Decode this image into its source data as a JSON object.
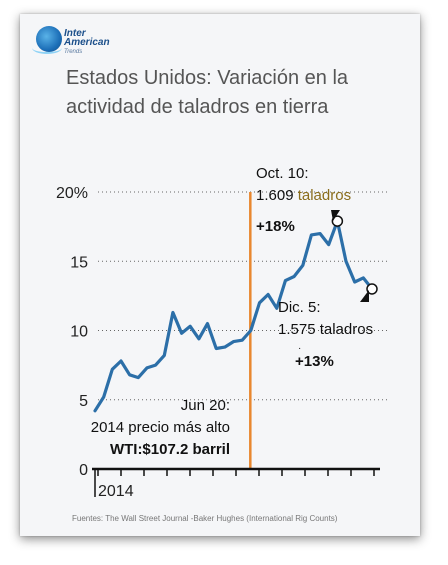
{
  "logo": {
    "line1": "Inter",
    "line2": "American",
    "line3": "Trends",
    "icon": "globe-icon"
  },
  "chart_data": {
    "type": "line",
    "title": "Estados Unidos: Variación en la actividad de taladros en tierra",
    "xlabel": "",
    "ylabel": "",
    "x_tick_label": "2014",
    "y_ticks": [
      0,
      5,
      10,
      15,
      20
    ],
    "y_tick_labels": [
      "0",
      "5",
      "10",
      "15",
      "20%"
    ],
    "ylim": [
      0,
      20
    ],
    "grid": "dotted horizontal",
    "series": [
      {
        "color": "#2c6fa8",
        "values": [
          4.2,
          5.2,
          7.2,
          7.8,
          6.8,
          6.6,
          7.3,
          7.5,
          8.2,
          11.3,
          9.8,
          10.3,
          9.4,
          10.5,
          8.7,
          8.8,
          9.2,
          9.3,
          10.0,
          12.0,
          12.6,
          11.6,
          13.6,
          13.9,
          14.7,
          16.9,
          17.0,
          16.2,
          17.9,
          15.0,
          13.5,
          13.8,
          13.0
        ]
      }
    ],
    "reference_line": {
      "index": 18,
      "color": "#e8872f"
    },
    "highlight_points": [
      {
        "index": 28,
        "value": 17.9
      },
      {
        "index": 32,
        "value": 13.0
      }
    ]
  },
  "annotations": {
    "peak_date": "Oct. 10:",
    "peak_count_value": "1.609",
    "peak_count_unit": "taladros",
    "peak_pct": "+18%",
    "dec_date": "Dic. 5:",
    "dec_count": "1.575 taladros",
    "dec_pct": "+13%",
    "jun_date": "Jun 20:",
    "jun_text": "2014 precio más alto",
    "jun_wti": "WTI:$107.2 barril"
  },
  "source": "Fuentes: The Wall Street Journal -Baker Hughes (International Rig Counts)"
}
